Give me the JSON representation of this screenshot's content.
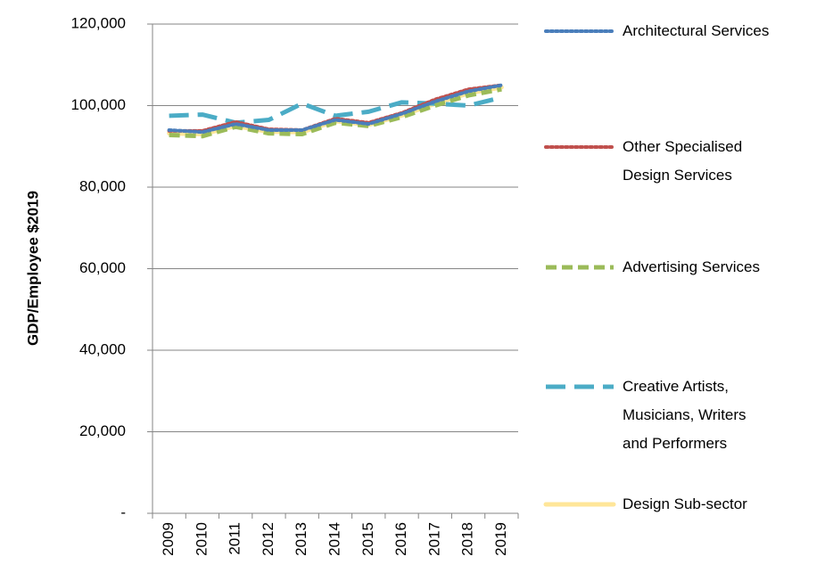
{
  "chart_data": {
    "type": "line",
    "y_label": "GDP/Employee $2019",
    "categories": [
      "2009",
      "2010",
      "2011",
      "2012",
      "2013",
      "2014",
      "2015",
      "2016",
      "2017",
      "2018",
      "2019"
    ],
    "series": [
      {
        "name": "Architectural Services",
        "color": "#4a7ebb",
        "style": "dotted",
        "values": [
          94000,
          93500,
          95500,
          94000,
          94000,
          96500,
          95500,
          98000,
          101000,
          103500,
          105000
        ]
      },
      {
        "name": "Other Specialised\nDesign Services",
        "color": "#c0504d",
        "style": "dotted",
        "values": [
          93800,
          93800,
          96000,
          94200,
          94000,
          96800,
          95800,
          98200,
          101500,
          104000,
          105000
        ]
      },
      {
        "name": "Advertising Services",
        "color": "#9bbb59",
        "style": "dashed",
        "values": [
          92800,
          92500,
          94800,
          93200,
          93000,
          95800,
          95000,
          97200,
          100000,
          102500,
          104000
        ]
      },
      {
        "name": "Creative Artists,\nMusicians, Writers\nand Performers",
        "color": "#4bacc6",
        "style": "longdash",
        "values": [
          97500,
          97800,
          95800,
          96500,
          100500,
          97500,
          98500,
          100800,
          100500,
          100000,
          102000
        ]
      },
      {
        "name": "Design Sub-sector",
        "color": "#ffe699",
        "style": "solid",
        "values": [
          93200,
          93000,
          95000,
          93600,
          93500,
          96200,
          95300,
          97600,
          100500,
          103000,
          104500
        ]
      }
    ],
    "ylim": [
      0,
      120000
    ],
    "yticks": [
      {
        "value": 0,
        "label": "-"
      },
      {
        "value": 20000,
        "label": "20,000"
      },
      {
        "value": 40000,
        "label": "40,000"
      },
      {
        "value": 60000,
        "label": "60,000"
      },
      {
        "value": 80000,
        "label": "80,000"
      },
      {
        "value": 100000,
        "label": "100,000"
      },
      {
        "value": 120000,
        "label": "120,000"
      }
    ],
    "grid": true,
    "legend": "right"
  }
}
